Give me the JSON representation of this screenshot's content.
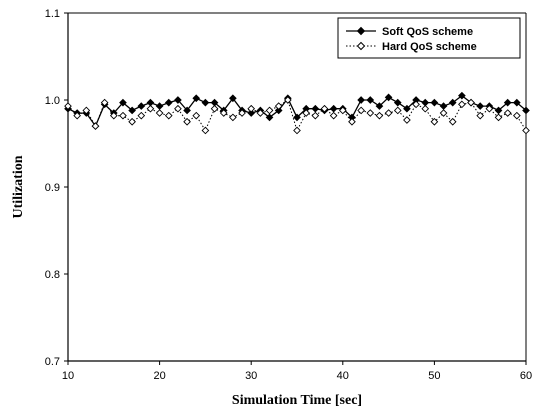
{
  "chart_data": {
    "type": "line",
    "title": "",
    "xlabel": "Simulation Time [sec]",
    "ylabel": "Utilization",
    "xlim": [
      10,
      60
    ],
    "ylim": [
      0.7,
      1.1
    ],
    "xticks": [
      "10",
      "20",
      "30",
      "40",
      "50",
      "60"
    ],
    "yticks": [
      "0.7",
      "0.8",
      "0.9",
      "1.0",
      "1.1"
    ],
    "grid": false,
    "legend": "top-right",
    "x": [
      10,
      11,
      12,
      13,
      14,
      15,
      16,
      17,
      18,
      19,
      20,
      21,
      22,
      23,
      24,
      25,
      26,
      27,
      28,
      29,
      30,
      31,
      32,
      33,
      34,
      35,
      36,
      37,
      38,
      39,
      40,
      41,
      42,
      43,
      44,
      45,
      46,
      47,
      48,
      49,
      50,
      51,
      52,
      53,
      54,
      55,
      56,
      57,
      58,
      59,
      60
    ],
    "series": [
      {
        "name": "Soft QoS scheme",
        "style": "solid",
        "marker": "filled-diamond",
        "color": "#000000",
        "values": [
          0.99,
          0.985,
          0.985,
          0.97,
          0.995,
          0.985,
          0.997,
          0.988,
          0.993,
          0.997,
          0.993,
          0.997,
          1.0,
          0.988,
          1.002,
          0.997,
          0.997,
          0.988,
          1.002,
          0.988,
          0.985,
          0.988,
          0.98,
          0.988,
          1.002,
          0.98,
          0.99,
          0.99,
          0.988,
          0.99,
          0.99,
          0.98,
          1.0,
          1.0,
          0.993,
          1.003,
          0.997,
          0.99,
          1.0,
          0.997,
          0.997,
          0.993,
          0.997,
          1.005,
          0.997,
          0.993,
          0.993,
          0.988,
          0.997,
          0.997,
          0.988
        ]
      },
      {
        "name": "Hard QoS scheme",
        "style": "dotted",
        "marker": "open-diamond",
        "color": "#000000",
        "values": [
          0.993,
          0.982,
          0.988,
          0.97,
          0.997,
          0.982,
          0.982,
          0.975,
          0.982,
          0.99,
          0.985,
          0.982,
          0.99,
          0.975,
          0.982,
          0.965,
          0.99,
          0.985,
          0.98,
          0.985,
          0.99,
          0.985,
          0.988,
          0.993,
          1.0,
          0.965,
          0.985,
          0.982,
          0.99,
          0.982,
          0.988,
          0.975,
          0.988,
          0.985,
          0.982,
          0.985,
          0.988,
          0.977,
          0.995,
          0.99,
          0.975,
          0.985,
          0.975,
          0.995,
          0.997,
          0.982,
          0.99,
          0.98,
          0.985,
          0.982,
          0.965
        ]
      }
    ]
  }
}
